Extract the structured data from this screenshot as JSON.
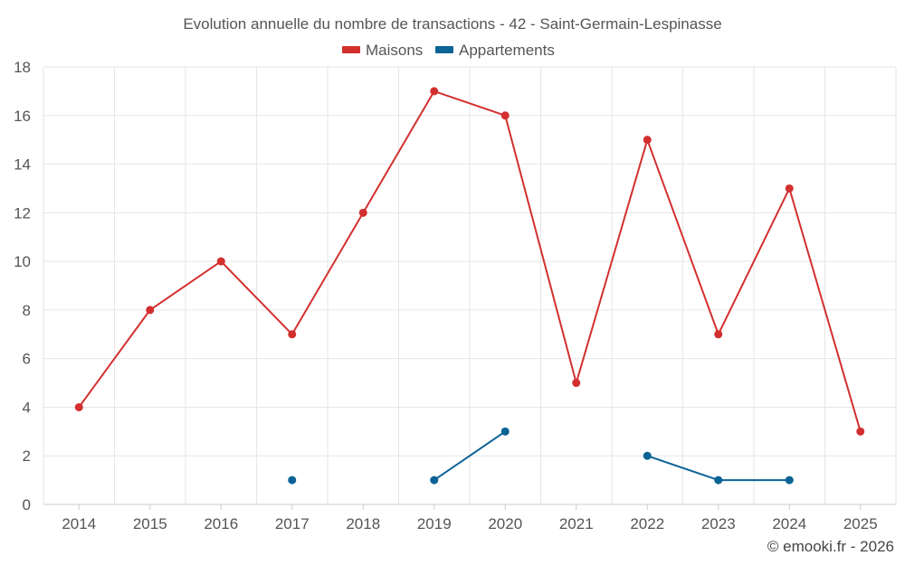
{
  "chart_data": {
    "type": "line",
    "title": "Evolution annuelle du nombre de transactions - 42 - Saint-Germain-Lespinasse",
    "categories": [
      "2014",
      "2015",
      "2016",
      "2017",
      "2018",
      "2019",
      "2020",
      "2021",
      "2022",
      "2023",
      "2024",
      "2025"
    ],
    "series": [
      {
        "name": "Maisons",
        "color": "#d32f2f",
        "values": [
          4,
          8,
          10,
          7,
          12,
          17,
          16,
          5,
          15,
          7,
          13,
          3
        ]
      },
      {
        "name": "Appartements",
        "color": "#0b6396",
        "values": [
          null,
          null,
          null,
          1,
          null,
          1,
          3,
          null,
          2,
          1,
          1,
          null
        ]
      }
    ],
    "ylim": [
      0,
      18
    ],
    "yticks": [
      "0",
      "2",
      "4",
      "6",
      "8",
      "10",
      "12",
      "14",
      "16",
      "18"
    ],
    "legend_position": "top-center",
    "grid": true
  },
  "credit": "© emooki.fr - 2026"
}
